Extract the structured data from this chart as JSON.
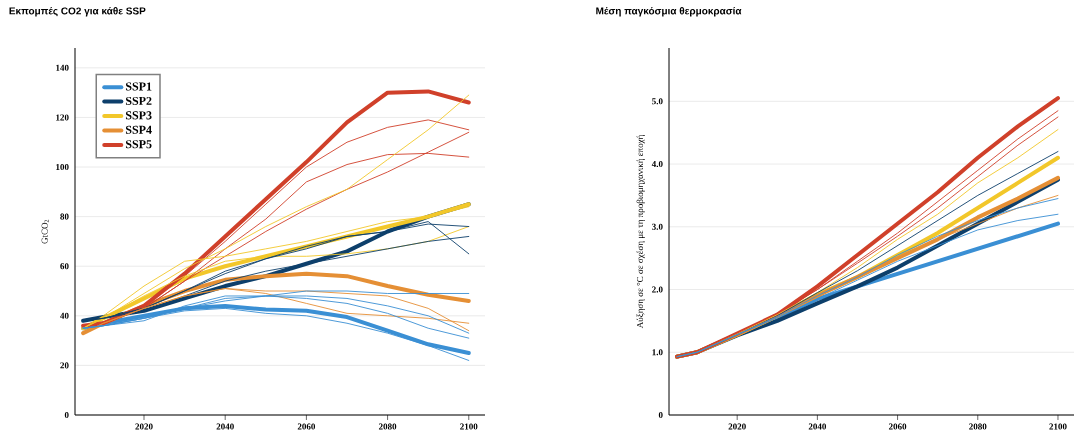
{
  "chart_data": [
    {
      "type": "line",
      "title": "Εκπομπές CO2 για κάθε SSP",
      "ylabel": "GtCO$_{2}$",
      "x": [
        2005,
        2010,
        2020,
        2030,
        2040,
        2050,
        2060,
        2070,
        2080,
        2090,
        2100
      ],
      "xlim": [
        2003,
        2104
      ],
      "ylim": [
        0,
        148
      ],
      "xticks": [
        2020,
        2040,
        2060,
        2080,
        2100
      ],
      "yticks": [
        0,
        20,
        40,
        60,
        80,
        100,
        120,
        140
      ],
      "grid": "y",
      "legend": "top left",
      "series": [
        {
          "name": "SSP1",
          "color": "#3a8fd4",
          "values": [
            35,
            37,
            40,
            43,
            44,
            42.5,
            42,
            39.5,
            34,
            28.5,
            25
          ]
        },
        {
          "name": "SSP2",
          "color": "#0d3f6b",
          "values": [
            38,
            39.5,
            42,
            47,
            52,
            56,
            61,
            66,
            74,
            80,
            85
          ]
        },
        {
          "name": "SSP3",
          "color": "#f2c72a",
          "values": [
            35,
            39,
            47,
            55,
            60,
            64,
            68,
            72,
            76,
            80,
            85
          ]
        },
        {
          "name": "SSP4",
          "color": "#e58f35",
          "values": [
            33,
            37,
            44,
            50,
            54.5,
            56,
            57,
            56,
            52,
            48.5,
            46
          ]
        },
        {
          "name": "SSP5",
          "color": "#d0402a",
          "values": [
            36,
            37,
            44,
            57,
            72,
            87,
            102,
            118,
            130,
            130.5,
            126
          ]
        },
        {
          "color": "#d0402a",
          "values": [
            36,
            37,
            44,
            56,
            70,
            85,
            100,
            110,
            116,
            119,
            115
          ]
        },
        {
          "color": "#d0402a",
          "values": [
            36,
            37,
            43,
            54,
            67,
            79,
            94,
            101,
            105,
            105.5,
            104
          ]
        },
        {
          "color": "#d0402a",
          "values": [
            36,
            37,
            43,
            54,
            64,
            74,
            83,
            91,
            98,
            106,
            114
          ]
        },
        {
          "color": "#f2c72a",
          "values": [
            35,
            39,
            49,
            59,
            67,
            76,
            84,
            91,
            103,
            115,
            129
          ]
        },
        {
          "color": "#f2c72a",
          "values": [
            35,
            39,
            48,
            56,
            62,
            64,
            64,
            65,
            67,
            70,
            76
          ]
        },
        {
          "color": "#f2c72a",
          "values": [
            35,
            40,
            52,
            62,
            64,
            67,
            70,
            74,
            78,
            80,
            84
          ]
        },
        {
          "color": "#0d3f6b",
          "values": [
            38,
            39,
            43,
            50,
            57,
            63,
            68,
            72,
            74,
            77,
            76
          ]
        },
        {
          "color": "#0d3f6b",
          "values": [
            38,
            39,
            43,
            50,
            58,
            63,
            67,
            72,
            74,
            78,
            65
          ]
        },
        {
          "color": "#0d3f6b",
          "values": [
            38,
            39,
            42,
            48,
            54,
            58,
            61,
            64,
            67,
            70,
            72
          ]
        },
        {
          "color": "#e58f35",
          "values": [
            33,
            37,
            43,
            48,
            51,
            49,
            45,
            41,
            40,
            39,
            37
          ]
        },
        {
          "color": "#e58f35",
          "values": [
            33,
            37,
            43,
            48,
            51,
            50,
            50,
            49,
            48,
            43,
            34
          ]
        },
        {
          "color": "#3a8fd4",
          "values": [
            35,
            36,
            38,
            44,
            48,
            48,
            50,
            50,
            49,
            49,
            49
          ]
        },
        {
          "color": "#3a8fd4",
          "values": [
            35,
            36,
            39,
            43,
            47,
            48,
            48,
            47,
            44,
            40,
            33
          ]
        },
        {
          "color": "#3a8fd4",
          "values": [
            35,
            36,
            39,
            42,
            43,
            41,
            40,
            37,
            33,
            28,
            22
          ]
        },
        {
          "color": "#3a8fd4",
          "values": [
            35,
            36,
            39,
            43,
            46,
            48,
            47,
            45,
            41,
            35,
            31
          ]
        }
      ]
    },
    {
      "type": "line",
      "title": "Μέση παγκόσμια θερμοκρασία",
      "ylabel": "Αύξηση σε °C σε σχέση με τη προβιομηχανική εποχή",
      "x": [
        2005,
        2010,
        2020,
        2030,
        2040,
        2050,
        2060,
        2070,
        2080,
        2090,
        2100
      ],
      "xlim": [
        2003,
        2104
      ],
      "ylim": [
        0,
        5.85
      ],
      "xticks": [
        2020,
        2040,
        2060,
        2080,
        2100
      ],
      "yticks": [
        0,
        {
          "value": 1,
          "label": "1.0"
        },
        {
          "value": 2,
          "label": "2.0"
        },
        {
          "value": 3,
          "label": "3.0"
        },
        {
          "value": 4,
          "label": "4.0"
        },
        {
          "value": 5,
          "label": "5.0"
        }
      ],
      "grid": "y",
      "series": [
        {
          "color": "#3a8fd4",
          "values": [
            0.93,
            1.0,
            1.28,
            1.55,
            1.85,
            2.05,
            2.25,
            2.45,
            2.65,
            2.85,
            3.05
          ]
        },
        {
          "color": "#0d3f6b",
          "values": [
            0.93,
            1.0,
            1.27,
            1.5,
            1.78,
            2.05,
            2.35,
            2.7,
            3.05,
            3.4,
            3.75
          ]
        },
        {
          "color": "#f2c72a",
          "values": [
            0.93,
            1.0,
            1.28,
            1.58,
            1.92,
            2.2,
            2.55,
            2.9,
            3.3,
            3.7,
            4.1
          ]
        },
        {
          "color": "#e58f35",
          "values": [
            0.93,
            1.0,
            1.28,
            1.58,
            1.9,
            2.2,
            2.5,
            2.8,
            3.15,
            3.45,
            3.78
          ]
        },
        {
          "color": "#d0402a",
          "values": [
            0.93,
            1.0,
            1.3,
            1.6,
            2.05,
            2.55,
            3.05,
            3.55,
            4.1,
            4.6,
            5.05
          ]
        },
        {
          "color": "#d0402a",
          "values": [
            0.93,
            1.0,
            1.3,
            1.62,
            2.0,
            2.45,
            2.9,
            3.4,
            3.9,
            4.4,
            4.85
          ]
        },
        {
          "color": "#d0402a",
          "values": [
            0.93,
            1.0,
            1.3,
            1.6,
            2.0,
            2.42,
            2.85,
            3.3,
            3.8,
            4.3,
            4.75
          ]
        },
        {
          "color": "#f2c72a",
          "values": [
            0.93,
            1.0,
            1.29,
            1.6,
            1.95,
            2.35,
            2.8,
            3.2,
            3.7,
            4.1,
            4.55
          ]
        },
        {
          "color": "#0d3f6b",
          "values": [
            0.93,
            1.0,
            1.28,
            1.58,
            1.95,
            2.3,
            2.7,
            3.1,
            3.5,
            3.85,
            4.2
          ]
        },
        {
          "color": "#e58f35",
          "values": [
            0.93,
            1.0,
            1.28,
            1.57,
            1.9,
            2.2,
            2.5,
            2.8,
            3.05,
            3.3,
            3.5
          ]
        },
        {
          "color": "#3a8fd4",
          "values": [
            0.93,
            1.0,
            1.28,
            1.57,
            1.9,
            2.2,
            2.55,
            2.85,
            3.1,
            3.3,
            3.45
          ]
        },
        {
          "color": "#3a8fd4",
          "values": [
            0.93,
            1.0,
            1.28,
            1.55,
            1.85,
            2.15,
            2.45,
            2.7,
            2.95,
            3.1,
            3.2
          ]
        }
      ]
    }
  ]
}
